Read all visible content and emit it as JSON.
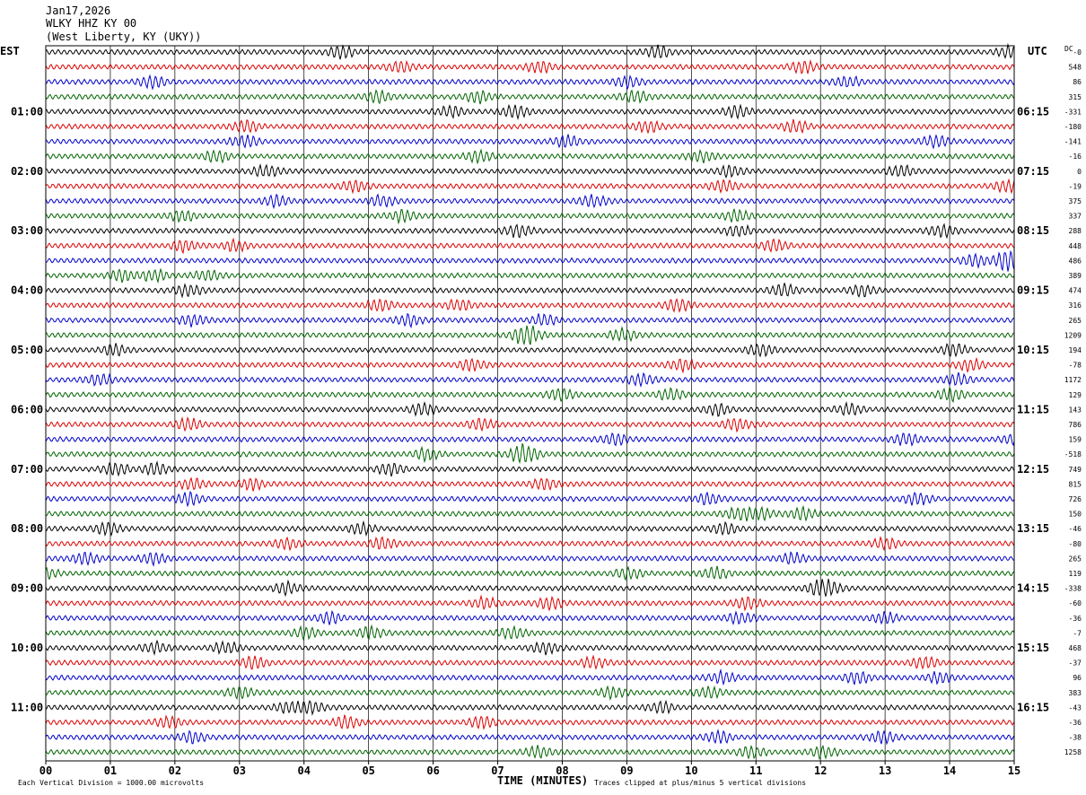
{
  "header": {
    "date": "Jan17,2026",
    "station": "WLKY HHZ KY 00",
    "location": "(West Liberty, KY (UKY))"
  },
  "left_timezone": "EST",
  "right_timezone": "UTC",
  "dc_header": "DC",
  "x_axis_title": "TIME (MINUTES)",
  "footer": {
    "scale_note": "Each Vertical Division = 1000.00 microvolts",
    "clip_note": "Traces clipped at plus/minus 5 vertical divisions"
  },
  "colors": {
    "cycle": [
      "#000000",
      "#dd0000",
      "#0000cc",
      "#006400"
    ],
    "grid": "#000000",
    "background": "#ffffff"
  },
  "chart_data": {
    "type": "line",
    "title": "WLKY HHZ KY 00",
    "xlabel": "TIME (MINUTES)",
    "xlim": [
      0,
      15
    ],
    "x_ticks": [
      "00",
      "01",
      "02",
      "03",
      "04",
      "05",
      "06",
      "07",
      "08",
      "09",
      "10",
      "11",
      "12",
      "13",
      "14",
      "15"
    ],
    "rows_per_hour": 4,
    "row_count": 48,
    "left_hour_labels": [
      "01:00",
      "02:00",
      "03:00",
      "04:00",
      "05:00",
      "06:00",
      "07:00",
      "08:00",
      "09:00",
      "10:00",
      "11:00"
    ],
    "right_hour_labels": [
      "06:15",
      "07:15",
      "08:15",
      "09:15",
      "10:15",
      "11:15",
      "12:15",
      "13:15",
      "14:15",
      "15:15",
      "16:15"
    ],
    "dc_offsets": [
      "-0",
      "548",
      "86",
      "315",
      "-331",
      "-180",
      "-141",
      "-16",
      "0",
      "-19",
      "375",
      "337",
      "288",
      "448",
      "486",
      "389",
      "474",
      "316",
      "265",
      "1209",
      "194",
      "-78",
      "1172",
      "129",
      "143",
      "786",
      "159",
      "-518",
      "749",
      "815",
      "726",
      "150",
      "-46",
      "-80",
      "265",
      "119",
      "-338",
      "-60",
      "-36",
      "-7",
      "468",
      "-37",
      "96",
      "383",
      "-43",
      "-36",
      "-38",
      "1258"
    ],
    "microvolts_per_division": 1000.0,
    "clip_divisions": 5
  }
}
